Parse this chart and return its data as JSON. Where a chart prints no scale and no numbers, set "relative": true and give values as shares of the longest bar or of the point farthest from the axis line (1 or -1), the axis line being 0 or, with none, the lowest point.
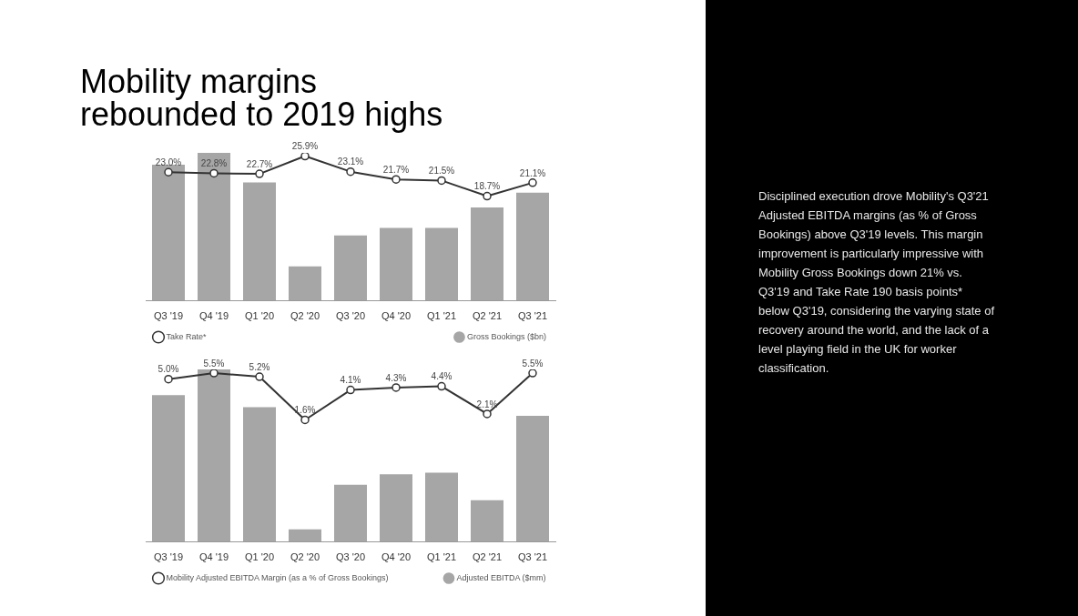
{
  "chart_data": [
    {
      "type": "bar",
      "title": "Mobility margins rebounded to 2019 highs",
      "categories": [
        "Q3 '19",
        "Q4 '19",
        "Q1 '20",
        "Q2 '20",
        "Q3 '20",
        "Q4 '20",
        "Q1 '21",
        "Q2 '21",
        "Q3 '21"
      ],
      "relative": true,
      "legend": "bottom",
      "series": [
        {
          "name": "Gross Bookings ($bn)",
          "color": "#a6a6a6",
          "values": [
            0.92,
            1,
            0.8,
            0.23,
            0.44,
            0.49,
            0.49,
            0.63,
            0.73
          ]
        }
      ]
    },
    {
      "type": "line",
      "categories": [
        null,
        null,
        null,
        null,
        null,
        null,
        null,
        null,
        null
      ],
      "legend": "bottom",
      "marker": "circle",
      "series": [
        {
          "name": "Take Rate*",
          "color": "#333333",
          "values": [
            23.0,
            22.8,
            22.7,
            25.9,
            23.1,
            21.7,
            21.5,
            18.7,
            21.1
          ],
          "value_labels": [
            "23.0%",
            "22.8%",
            "22.7%",
            "25.9%",
            "23.1%",
            "21.7%",
            "21.5%",
            "18.7%",
            "21.1%"
          ]
        }
      ]
    },
    {
      "type": "bar",
      "categories": [
        "Q3 '19",
        "Q4 '19",
        "Q1 '20",
        "Q2 '20",
        "Q3 '20",
        "Q4 '20",
        "Q1 '21",
        "Q2 '21",
        "Q3 '21"
      ],
      "relative": true,
      "legend": "bottom",
      "series": [
        {
          "name": "Adjusted EBITDA ($mm)",
          "color": "#a6a6a6",
          "values": [
            0.85,
            1,
            0.78,
            0.07,
            0.33,
            0.39,
            0.4,
            0.24,
            0.73
          ]
        }
      ]
    },
    {
      "type": "line",
      "categories": [
        null,
        null,
        null,
        null,
        null,
        null,
        null,
        null,
        null
      ],
      "legend": "bottom",
      "marker": "circle",
      "series": [
        {
          "name": "Mobility Adjusted EBITDA Margin (as a % of Gross Bookings)",
          "color": "#333333",
          "values": [
            5.0,
            5.5,
            5.2,
            1.6,
            4.1,
            4.3,
            4.4,
            2.1,
            5.5
          ],
          "value_labels": [
            "5.0%",
            "5.5%",
            "5.2%",
            "1.6%",
            "4.1%",
            "4.3%",
            "4.4%",
            "2.1%",
            "5.5%"
          ]
        }
      ]
    },
    {
      "type": "other",
      "annotations": [
        "Disciplined execution drove Mobility's Q3'21 Adjusted EBITDA margins (as % of Gross Bookings) above Q3'19 levels. This margin improvement is particularly impressive with Mobility Gross Bookings down 21% vs. Q3'19 and Take Rate 190 basis points* below Q3'19, considering the varying state of recovery around the world, and the lack of a level playing field in the UK for worker classification."
      ]
    }
  ]
}
